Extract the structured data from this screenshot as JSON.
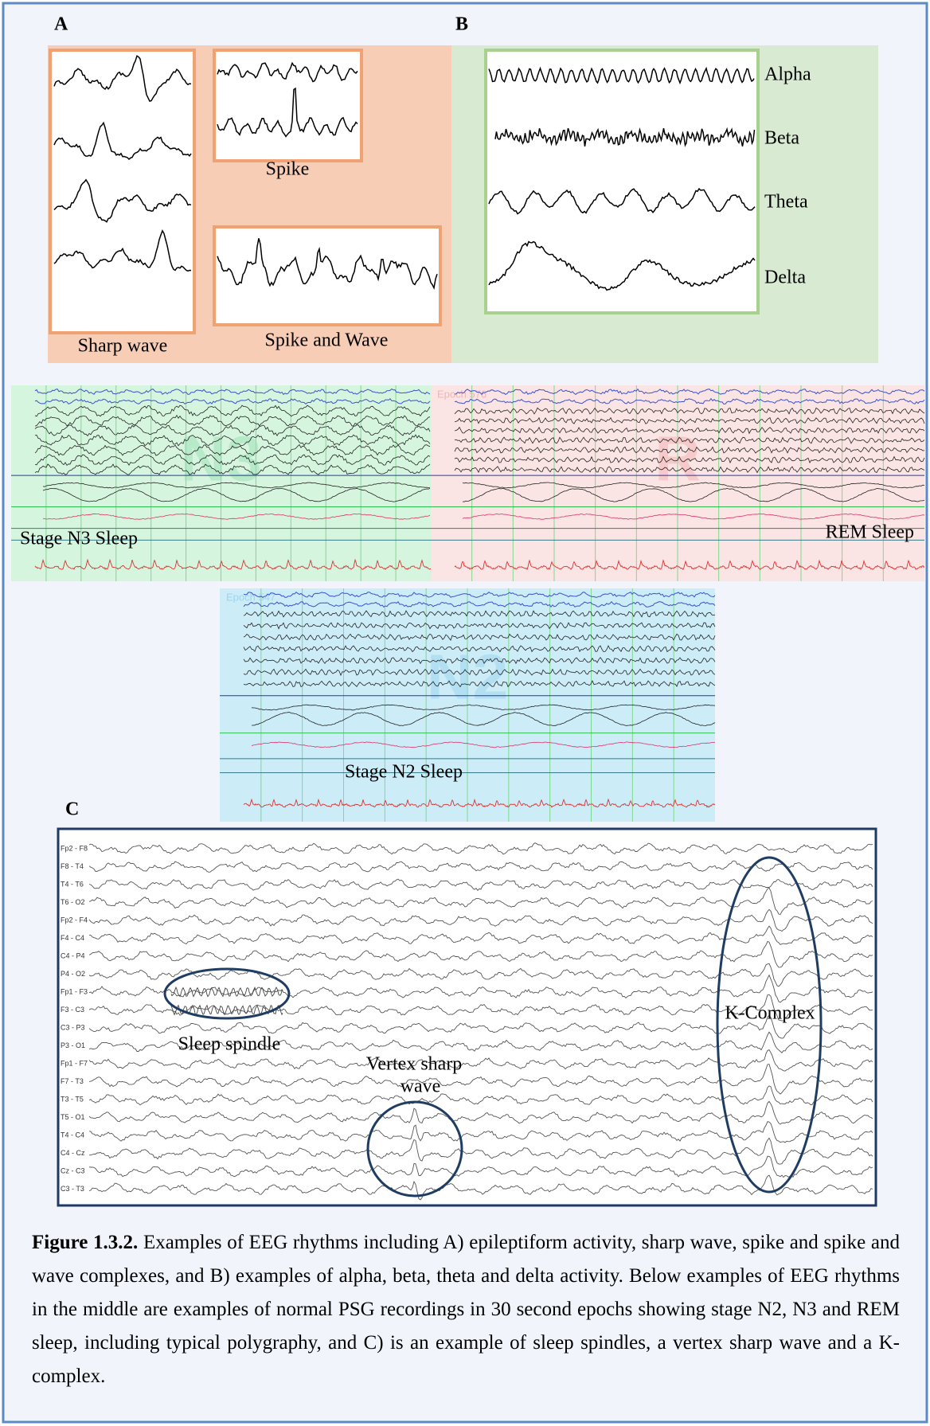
{
  "panel_a": {
    "label": "A",
    "sharp_wave": "Sharp wave",
    "spike": "Spike",
    "spike_and_wave": "Spike and Wave"
  },
  "panel_b": {
    "label": "B",
    "rhythms": [
      "Alpha",
      "Beta",
      "Theta",
      "Delta"
    ]
  },
  "psg": [
    {
      "stage": "N3",
      "caption": "Stage N3 Sleep"
    },
    {
      "stage": "R",
      "epoch": "Epoch 576",
      "caption": "REM Sleep"
    },
    {
      "stage": "N2",
      "epoch": "Epoch 547",
      "caption": "Stage N2 Sleep"
    }
  ],
  "panel_c": {
    "label": "C",
    "channels": [
      "Fp2 - F8",
      "F8 - T4",
      "T4 - T6",
      "T6 - O2",
      "Fp2 - F4",
      "F4 - C4",
      "C4 - P4",
      "P4 - O2",
      "Fp1 - F3",
      "F3 - C3",
      "C3 - P3",
      "P3 - O1",
      "Fp1 - F7",
      "F7 - T3",
      "T3 - T5",
      "T5 - O1",
      "T4 - C4",
      "C4 - Cz",
      "Cz - C3",
      "C3 - T3"
    ],
    "annotations": {
      "spindle": "Sleep spindle",
      "vertex_1": "Vertex sharp",
      "vertex_2": "wave",
      "k_complex": "K-Complex"
    }
  },
  "caption": {
    "figure": "Figure 1.3.2.",
    "text": " Examples of EEG rhythms including A) epileptiform activity, sharp wave, spike and spike and wave complexes, and B) examples of alpha, beta, theta and delta activity. Below examples of EEG rhythms in the middle are examples of normal PSG recordings in 30 second epochs showing stage N2, N3 and REM sleep, including typical polygraphy, and C) is an example of sleep spindles, a vertex sharp wave and a K-complex."
  }
}
